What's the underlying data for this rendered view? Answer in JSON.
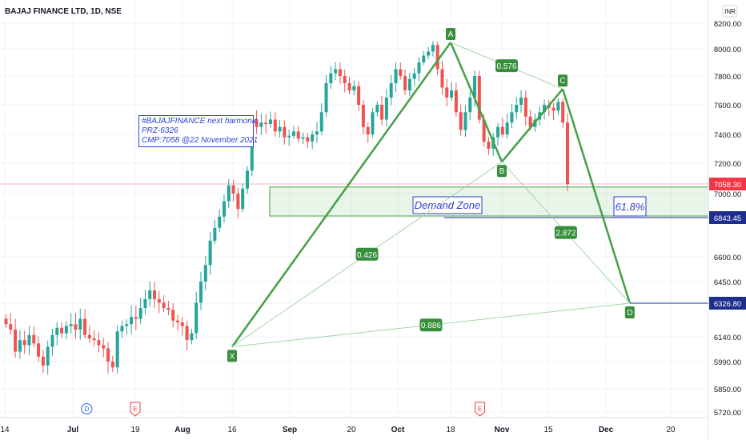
{
  "header": {
    "title": "BAJAJ FINANCE LTD, 1D, NSE"
  },
  "currency_label": "INR",
  "note": {
    "lines": [
      "#BAJAJFINANCE  next harmonic",
      "PRZ-6326",
      "CMP:7058 @22 November 2021"
    ]
  },
  "chart_data": {
    "type": "candlestick",
    "title": "BAJAJ FINANCE LTD, 1D, NSE",
    "ylim": [
      5680,
      8320
    ],
    "y_ticks": [
      5720,
      5850,
      5990,
      6140,
      6326.8,
      6450,
      6600,
      6843.45,
      7000,
      7058.3,
      7200,
      7400,
      7600,
      7800,
      8000,
      8200
    ],
    "y_tick_labels": [
      "5720.00",
      "5850.00",
      "5990.00",
      "6140.00",
      "6326.80",
      "6450.00",
      "6600.00",
      "6843.45",
      "7000.00",
      "7058.30",
      "7200.00",
      "7400.00",
      "7600.00",
      "7800.00",
      "8000.00",
      "8200.00"
    ],
    "highlighted_prices": [
      {
        "label": "7058.30",
        "value": 7058.3,
        "color": "#f23645"
      },
      {
        "label": "6843.45",
        "value": 6843.45,
        "color": "#1f2d8f"
      },
      {
        "label": "6326.80",
        "value": 6326.8,
        "color": "#1f2d8f"
      }
    ],
    "x_ticks": [
      {
        "label": "14",
        "date": "2021-06-14"
      },
      {
        "label": "Jul",
        "date": "2021-07-01"
      },
      {
        "label": "19",
        "date": "2021-07-19"
      },
      {
        "label": "Aug",
        "date": "2021-08-02"
      },
      {
        "label": "16",
        "date": "2021-08-16"
      },
      {
        "label": "Sep",
        "date": "2021-09-01"
      },
      {
        "label": "20",
        "date": "2021-09-20"
      },
      {
        "label": "Oct",
        "date": "2021-10-01"
      },
      {
        "label": "18",
        "date": "2021-10-18"
      },
      {
        "label": "Nov",
        "date": "2021-11-01"
      },
      {
        "label": "15",
        "date": "2021-11-15"
      },
      {
        "label": "Dec",
        "date": "2021-12-01"
      },
      {
        "label": "20",
        "date": "2021-12-20"
      }
    ],
    "events": [
      {
        "label": "D",
        "date": "2021-07-05",
        "color": "#2962ff"
      },
      {
        "label": "E",
        "date": "2021-07-19",
        "color": "#f23645"
      },
      {
        "label": "E",
        "date": "2021-10-26",
        "color": "#f23645"
      }
    ],
    "candles_close": [
      6210,
      6180,
      6050,
      6120,
      6090,
      6150,
      6100,
      6020,
      5970,
      6080,
      6150,
      6190,
      6160,
      6200,
      6210,
      6180,
      6240,
      6150,
      6130,
      6120,
      6090,
      6070,
      5990,
      5960,
      6170,
      6200,
      6210,
      6250,
      6240,
      6300,
      6350,
      6400,
      6350,
      6330,
      6300,
      6290,
      6230,
      6220,
      6200,
      6120,
      6160,
      6330,
      6450,
      6550,
      6700,
      6780,
      6850,
      6950,
      7050,
      7000,
      6900,
      7030,
      7150,
      7500,
      7450,
      7480,
      7470,
      7500,
      7420,
      7450,
      7380,
      7390,
      7420,
      7370,
      7380,
      7350,
      7400,
      7420,
      7550,
      7750,
      7820,
      7850,
      7800,
      7750,
      7700,
      7730,
      7600,
      7450,
      7400,
      7550,
      7600,
      7500,
      7650,
      7750,
      7850,
      7800,
      7700,
      7780,
      7820,
      7900,
      7950,
      7980,
      8030,
      7850,
      7720,
      7650,
      7700,
      7550,
      7430,
      7550,
      7650,
      7800,
      7500,
      7350,
      7300,
      7380,
      7450,
      7400,
      7480,
      7550,
      7600,
      7650,
      7520,
      7450,
      7500,
      7550,
      7600,
      7580,
      7560,
      7620,
      7480,
      7058
    ],
    "harmonic_pattern": {
      "points": [
        {
          "label": "X",
          "date": "2021-08-16",
          "price": 6080
        },
        {
          "label": "A",
          "date": "2021-10-18",
          "price": 8050
        },
        {
          "label": "B",
          "date": "2021-11-01",
          "price": 7210
        },
        {
          "label": "C",
          "date": "2021-11-19",
          "price": 7710
        },
        {
          "label": "D",
          "date": "2021-12-08",
          "price": 6326.8
        }
      ],
      "ratios": [
        {
          "label": "0.576",
          "from": "A",
          "to": "C"
        },
        {
          "label": "0.426",
          "from": "X",
          "to": "B"
        },
        {
          "label": "2.872",
          "from": "B",
          "to": "D"
        },
        {
          "label": "0.886",
          "from": "X",
          "to": "D"
        }
      ]
    },
    "demand_zone": {
      "label": "Demand Zone",
      "from_price": 6843.45,
      "to_price": 7040,
      "extra_label": "61.8%"
    }
  }
}
